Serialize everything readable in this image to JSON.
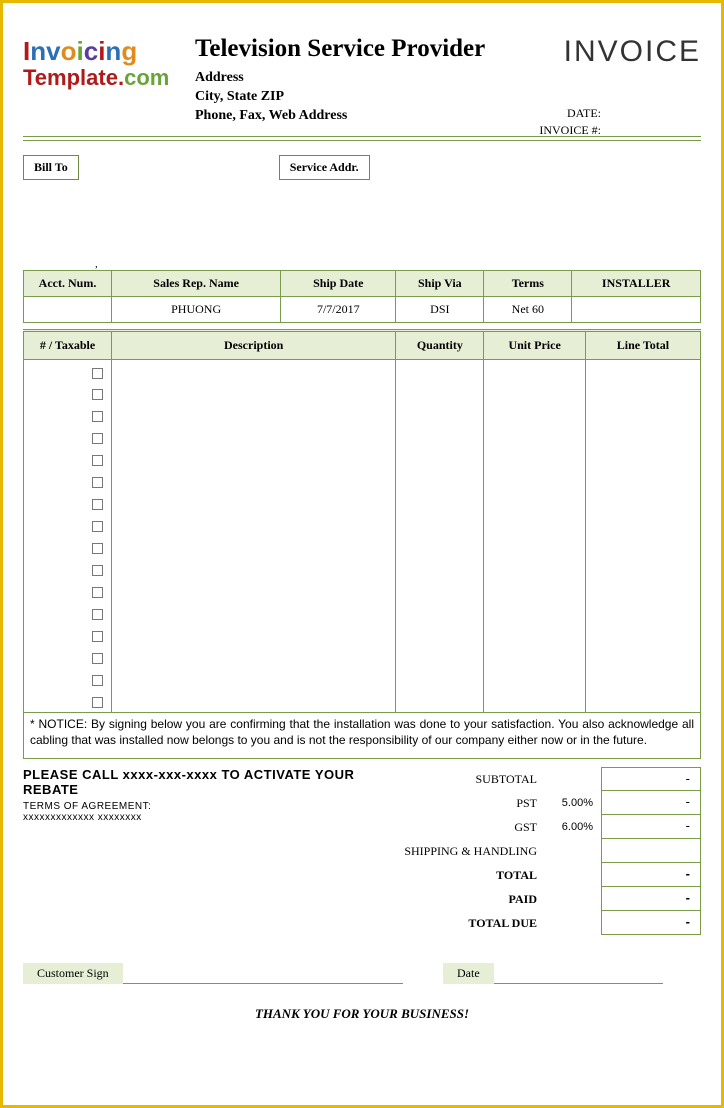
{
  "logo": {
    "line1_chars": [
      "I",
      "n",
      "v",
      "o",
      "i",
      "c",
      "i",
      "n",
      "g"
    ],
    "line2_text": "Template",
    "line2_dot": ".",
    "line2_com": "com"
  },
  "company": {
    "title": "Television Service Provider",
    "addr1": "Address",
    "addr2": "City, State ZIP",
    "addr3": "Phone, Fax, Web Address"
  },
  "invoice_label": "INVOICE",
  "meta_labels": {
    "date": "DATE:",
    "num": "INVOICE #:"
  },
  "bill_to_label": "Bill To",
  "service_addr_label": "Service Addr.",
  "meta_table": {
    "headers": [
      "Acct. Num.",
      "Sales Rep. Name",
      "Ship Date",
      "Ship Via",
      "Terms",
      "INSTALLER"
    ],
    "row": [
      "",
      "PHUONG",
      "7/7/2017",
      "DSI",
      "Net 60",
      ""
    ]
  },
  "items_headers": [
    "# / Taxable",
    "Description",
    "Quantity",
    "Unit Price",
    "Line Total"
  ],
  "item_rows": 16,
  "notice_text": "* NOTICE:  By signing below you are confirming that the installation was done to your satisfaction. You also acknowledge all cabling that was installed now belongs to you and is not the responsibility of our company either now or in the future.",
  "rebate": {
    "main": "PLEASE CALL xxxx-xxx-xxxx TO ACTIVATE YOUR REBATE",
    "terms_label": "TERMS OF AGREEMENT:",
    "xline": "xxxxxxxxxxxxx xxxxxxxx"
  },
  "totals": [
    {
      "label": "SUBTOTAL",
      "pct": "",
      "value": "-",
      "bold": false
    },
    {
      "label": "PST",
      "pct": "5.00%",
      "value": "-",
      "bold": false
    },
    {
      "label": "GST",
      "pct": "6.00%",
      "value": "-",
      "bold": false
    },
    {
      "label": "SHIPPING & HANDLING",
      "pct": "",
      "value": "",
      "bold": false
    },
    {
      "label": "TOTAL",
      "pct": "",
      "value": "-",
      "bold": true
    },
    {
      "label": "PAID",
      "pct": "",
      "value": "-",
      "bold": true
    },
    {
      "label": "TOTAL DUE",
      "pct": "",
      "value": "-",
      "bold": true
    }
  ],
  "sign": {
    "customer": "Customer Sign",
    "date": "Date"
  },
  "thank_you": "THANK YOU FOR YOUR BUSINESS!",
  "colors": {
    "frame": "#e6b800",
    "line_green": "#7a9c4a",
    "header_bg": "#e6efd5"
  },
  "col_widths": {
    "meta": [
      "13%",
      "25%",
      "17%",
      "13%",
      "13%",
      "19%"
    ],
    "items": [
      "13%",
      "42%",
      "13%",
      "15%",
      "17%"
    ]
  }
}
